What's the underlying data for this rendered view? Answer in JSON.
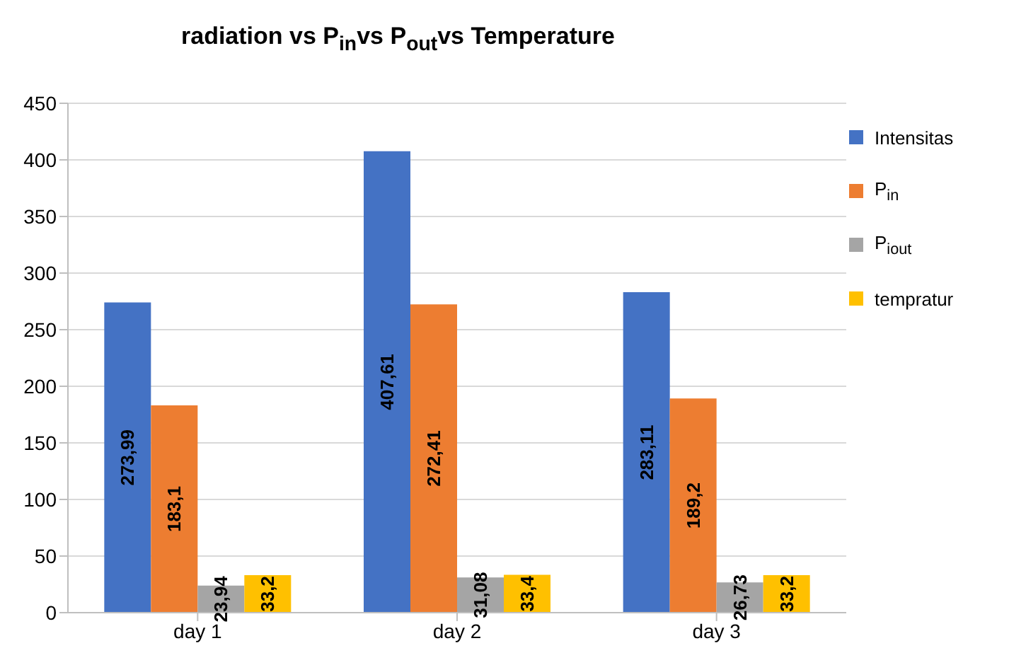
{
  "chart_data": {
    "type": "bar",
    "title": "radiation vs P$_{in}$vs P$_{out}$vs Temperature",
    "categories": [
      "day 1",
      "day 2",
      "day 3"
    ],
    "series": [
      {
        "name": "Intensitas",
        "color": "#4472c4",
        "values": [
          273.99,
          407.61,
          283.11
        ],
        "value_labels": [
          "273,99",
          "407,61",
          "283,11"
        ]
      },
      {
        "name": "P$_{in}$",
        "color": "#ed7d31",
        "values": [
          183.1,
          272.41,
          189.2
        ],
        "value_labels": [
          "183,1",
          "272,41",
          "189,2"
        ]
      },
      {
        "name": "P$_{iout}$",
        "color": "#a5a5a5",
        "values": [
          23.94,
          31.08,
          26.73
        ],
        "value_labels": [
          "23,94",
          "31,08",
          "26,73"
        ]
      },
      {
        "name": "tempratur",
        "color": "#ffc000",
        "values": [
          33.2,
          33.4,
          33.2
        ],
        "value_labels": [
          "33,2",
          "33,4",
          "33,2"
        ]
      }
    ],
    "ylim": [
      0,
      450
    ],
    "yticks": [
      0,
      50,
      100,
      150,
      200,
      250,
      300,
      350,
      400,
      450
    ],
    "grid": "y",
    "legend": "top right"
  }
}
